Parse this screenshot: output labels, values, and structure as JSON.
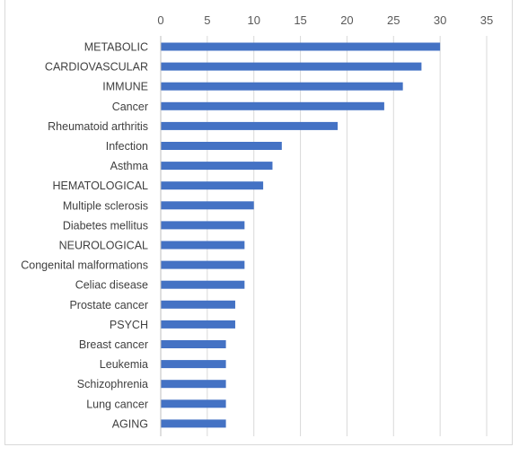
{
  "chart_data": {
    "type": "bar",
    "orientation": "horizontal",
    "title": "",
    "xlabel": "",
    "ylabel": "",
    "xlim": [
      0,
      35
    ],
    "x_ticks": [
      0,
      5,
      10,
      15,
      20,
      25,
      30,
      35
    ],
    "x_axis_position": "top",
    "grid": true,
    "legend": "none",
    "bar_color": "#4472c4",
    "categories": [
      "METABOLIC",
      "CARDIOVASCULAR",
      "IMMUNE",
      "Cancer",
      "Rheumatoid arthritis",
      "Infection",
      "Asthma",
      "HEMATOLOGICAL",
      "Multiple sclerosis",
      "Diabetes mellitus",
      "NEUROLOGICAL",
      "Congenital malformations",
      "Celiac disease",
      "Prostate cancer",
      "PSYCH",
      "Breast cancer",
      "Leukemia",
      "Schizophrenia",
      "Lung cancer",
      "AGING"
    ],
    "values": [
      30,
      28,
      26,
      24,
      19,
      13,
      12,
      11,
      10,
      9,
      9,
      9,
      9,
      8,
      8,
      7,
      7,
      7,
      7,
      7
    ]
  }
}
